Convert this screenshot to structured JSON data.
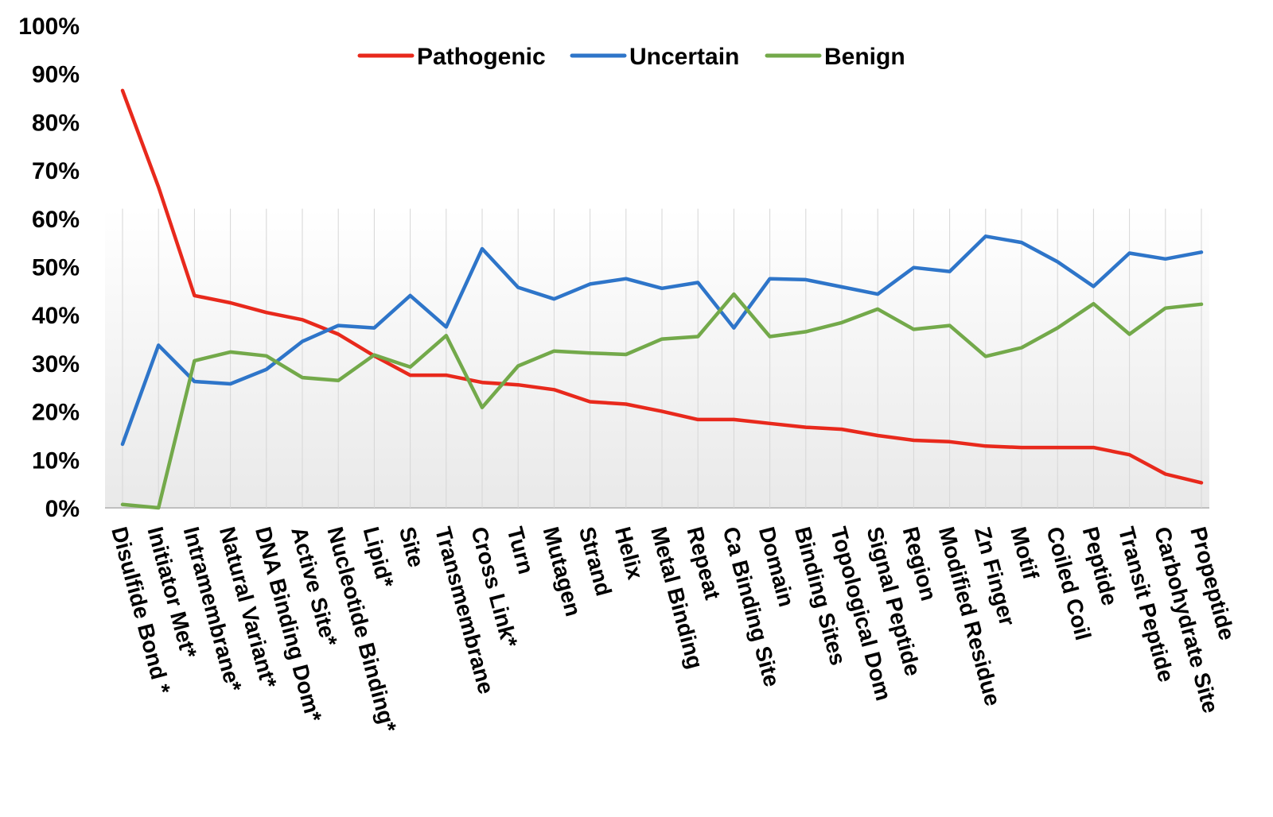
{
  "chart_data": {
    "type": "line",
    "categories": [
      "Disulfide Bond *",
      "Initiator Met*",
      "Intramembrane*",
      "Natural Variant*",
      "DNA Binding Dom*",
      "Active Site*",
      "Nucleotide Binding*",
      "Lipid*",
      "Site",
      "Transmembrane",
      "Cross Link*",
      "Turn",
      "Mutagen",
      "Strand",
      "Helix",
      "Metal Binding",
      "Repeat",
      "Ca Binding Site",
      "Domain",
      "Binding Sites",
      "Topological Dom",
      "Signal Peptide",
      "Region",
      "Modified Residue",
      "Zn Finger",
      "Motif",
      "Coiled Coil",
      "Peptide",
      "Transit Peptide",
      "Carbohydrate Site",
      "Propeptide"
    ],
    "series": [
      {
        "name": "Pathogenic",
        "color": "#e8291c",
        "values": [
          86.5,
          66.5,
          44,
          42.5,
          40.5,
          39,
          36,
          31.5,
          27.5,
          27.5,
          26,
          25.5,
          24.5,
          22,
          21.5,
          20,
          18.3,
          18.3,
          17.5,
          16.7,
          16.3,
          15,
          14,
          13.7,
          12.8,
          12.5,
          12.5,
          12.5,
          11,
          7,
          5.2
        ]
      },
      {
        "name": "Uncertain",
        "color": "#2e75c9",
        "values": [
          13.2,
          33.7,
          26.2,
          25.7,
          28.7,
          34.5,
          37.8,
          37.3,
          44,
          37.5,
          53.7,
          45.7,
          43.3,
          46.4,
          47.5,
          45.5,
          46.7,
          37.3,
          47.5,
          47.3,
          45.8,
          44.3,
          49.8,
          49,
          56.3,
          55,
          51,
          45.9,
          52.8,
          51.6,
          53
        ]
      },
      {
        "name": "Benign",
        "color": "#73a94a",
        "values": [
          0.7,
          0,
          30.5,
          32.3,
          31.5,
          27,
          26.4,
          31.7,
          29.2,
          35.7,
          20.8,
          29.4,
          32.5,
          32.1,
          31.8,
          35,
          35.5,
          44.3,
          35.5,
          36.5,
          38.4,
          41.2,
          37,
          37.8,
          31.4,
          33.2,
          37.3,
          42.3,
          36,
          41.4,
          42.2
        ]
      }
    ],
    "y_ticks": [
      "0%",
      "10%",
      "20%",
      "30%",
      "40%",
      "50%",
      "60%",
      "70%",
      "80%",
      "90%",
      "100%"
    ],
    "ylim": [
      0,
      100
    ],
    "legend_position": "top-center",
    "grid": "vertical"
  }
}
